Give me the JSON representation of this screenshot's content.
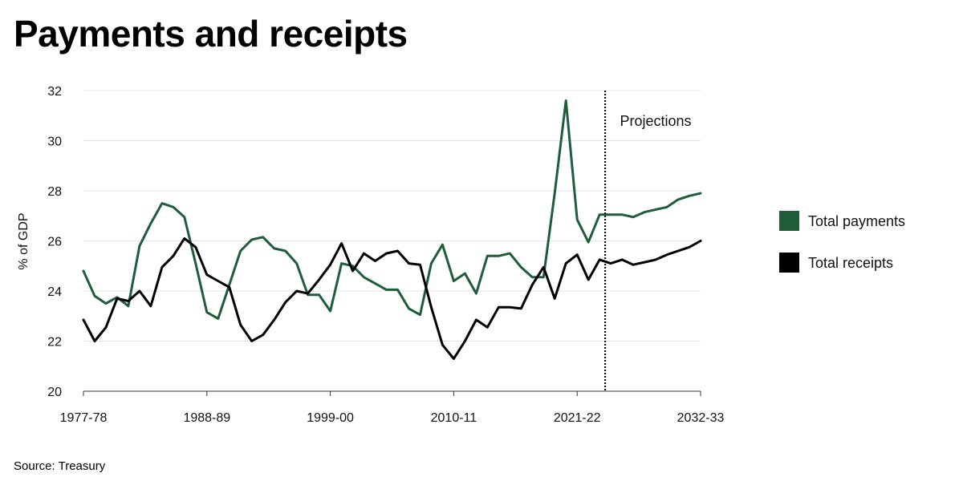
{
  "title": "Payments and receipts",
  "source": "Source: Treasury",
  "chart_data": {
    "type": "line",
    "ylabel": "% of GDP",
    "ylim": [
      20,
      32
    ],
    "yticks": [
      20,
      22,
      24,
      26,
      28,
      30,
      32
    ],
    "xtick_labels": [
      "1977-78",
      "1988-89",
      "1999-00",
      "2010-11",
      "2021-22",
      "2032-33"
    ],
    "x_start": 1977,
    "x_end": 2032,
    "projection_start": 2023,
    "annotation": "Projections",
    "grid": true,
    "legend_position": "right",
    "series": [
      {
        "name": "Total payments",
        "color": "#1f5d3a",
        "values": [
          24.8,
          23.8,
          23.5,
          23.75,
          23.4,
          25.8,
          26.7,
          27.5,
          27.35,
          26.95,
          25.1,
          23.15,
          22.9,
          24.25,
          25.6,
          26.05,
          26.15,
          25.7,
          25.6,
          25.1,
          23.85,
          23.85,
          23.2,
          25.1,
          25.0,
          24.55,
          24.3,
          24.05,
          24.05,
          23.3,
          23.05,
          25.1,
          25.85,
          24.4,
          24.7,
          23.9,
          25.4,
          25.4,
          25.5,
          24.95,
          24.55,
          24.55,
          27.9,
          31.6,
          26.85,
          25.95,
          27.05,
          27.05,
          27.05,
          26.95,
          27.15,
          27.25,
          27.35,
          27.65,
          27.8,
          27.9
        ]
      },
      {
        "name": "Total receipts",
        "color": "#000000",
        "values": [
          22.85,
          22.0,
          22.55,
          23.7,
          23.6,
          24.0,
          23.4,
          24.95,
          25.4,
          26.1,
          25.75,
          24.65,
          24.4,
          24.15,
          22.65,
          22.0,
          22.25,
          22.85,
          23.55,
          24.0,
          23.9,
          24.45,
          25.05,
          25.9,
          24.8,
          25.5,
          25.2,
          25.5,
          25.6,
          25.1,
          25.05,
          23.35,
          21.85,
          21.3,
          22.0,
          22.85,
          22.55,
          23.35,
          23.35,
          23.3,
          24.25,
          24.95,
          23.7,
          25.1,
          25.45,
          24.45,
          25.25,
          25.1,
          25.25,
          25.05,
          25.15,
          25.25,
          25.45,
          25.6,
          25.75,
          26.0
        ]
      }
    ]
  }
}
